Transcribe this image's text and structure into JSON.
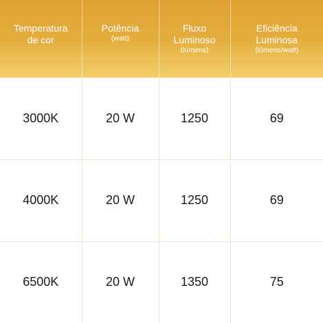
{
  "header": {
    "columns": [
      {
        "title_line1": "Temperatura",
        "title_line2": "de cor",
        "subtitle": ""
      },
      {
        "title_line1": "Potência",
        "title_line2": "",
        "subtitle": "(watt)"
      },
      {
        "title_line1": "Fluxo",
        "title_line2": "Luminoso",
        "subtitle": "(lúmens)"
      },
      {
        "title_line1": "Eficiência",
        "title_line2": "Luminosa",
        "subtitle": "(lúmens/watt)"
      }
    ]
  },
  "rows": [
    [
      "3000K",
      "20 W",
      "1250",
      "69"
    ],
    [
      "4000K",
      "20 W",
      "1250",
      "69"
    ],
    [
      "6500K",
      "20 W",
      "1350",
      "75"
    ]
  ],
  "colors": {
    "header_gradient_top": "#dfa135",
    "header_gradient_bottom": "#f3cf6a",
    "header_text": "#ffffff",
    "grid_lines": "#efe6cc",
    "body_text": "#1a1a1a"
  }
}
